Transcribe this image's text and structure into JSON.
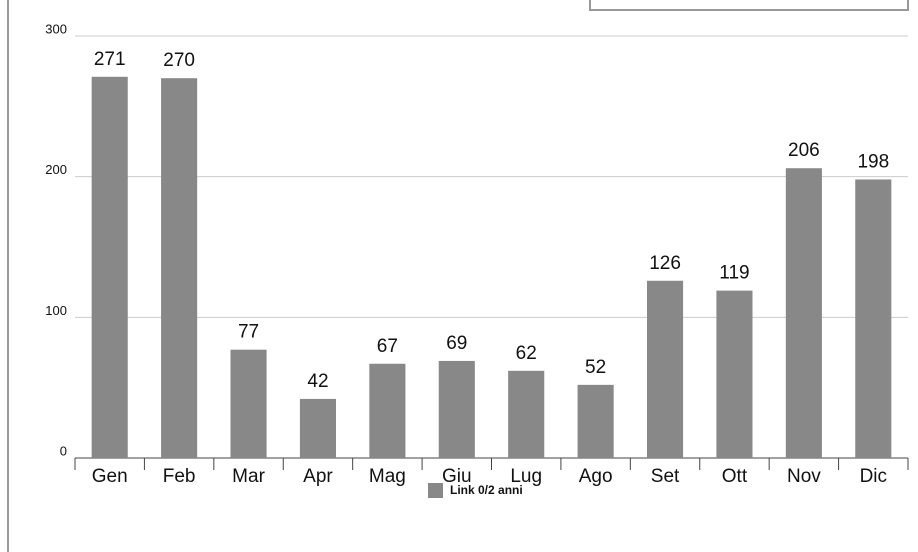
{
  "chart_data": {
    "type": "bar",
    "categories": [
      "Gen",
      "Feb",
      "Mar",
      "Apr",
      "Mag",
      "Giu",
      "Lug",
      "Ago",
      "Set",
      "Ott",
      "Nov",
      "Dic"
    ],
    "series": [
      {
        "name": "Link 0/2 anni",
        "color": "#888888",
        "values": [
          271,
          270,
          77,
          42,
          67,
          69,
          62,
          52,
          126,
          119,
          206,
          198
        ]
      }
    ],
    "ylim": [
      0,
      300
    ],
    "yticks": [
      0,
      100,
      200,
      300
    ],
    "grid": true,
    "legend": "bottom"
  }
}
